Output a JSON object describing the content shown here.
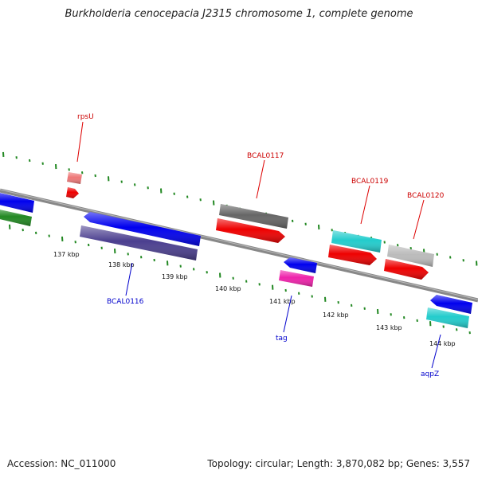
{
  "title": "Burkholderia cenocepacia J2315 chromosome 1, complete genome",
  "footer": {
    "accession": "Accession: NC_011000",
    "stats": "Topology: circular; Length: 3,870,082 bp; Genes: 3,557"
  },
  "scale_labels": [
    "137 kbp",
    "138 kbp",
    "139 kbp",
    "140 kbp",
    "141 kbp",
    "142 kbp",
    "143 kbp",
    "144 kbp"
  ],
  "gene_labels": {
    "forward_color": "#cc0000",
    "reverse_color": "#0000cc",
    "forward": [
      "rpsU",
      "BCAL0117",
      "BCAL0119",
      "BCAL0120"
    ],
    "reverse": [
      "BCAL0116",
      "tag",
      "aqpZ"
    ]
  },
  "colors": {
    "backbone": "#888888",
    "tick": "#228822",
    "blue": "#0000ee",
    "slate": "#4b3f8f",
    "green": "#228822",
    "red": "#ee0000",
    "pink": "#ee7777",
    "dark_gray": "#666666",
    "light_gray": "#bbbbbb",
    "cyan": "#22cccc",
    "magenta": "#ee22aa"
  }
}
